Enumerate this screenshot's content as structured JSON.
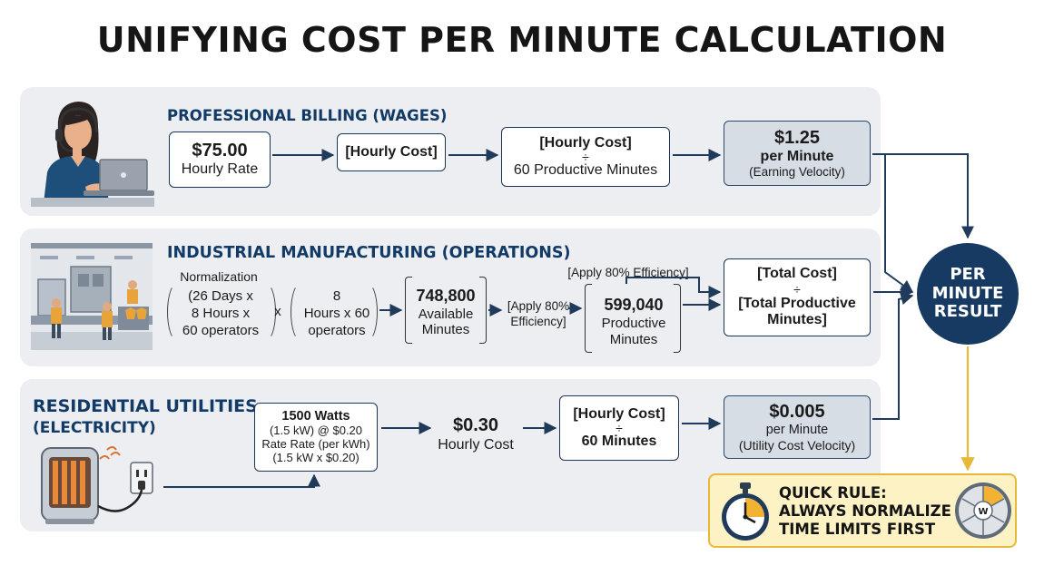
{
  "title": "UNIFYING COST PER MINUTE CALCULATION",
  "colors": {
    "navy": "#173a63",
    "panel": "#eceef1",
    "dark_box": "#d7dde5",
    "gold": "#e6b93a",
    "rule_bg": "#fdf2c4"
  },
  "professional": {
    "heading": "PROFESSIONAL BILLING (WAGES)",
    "icon": "headset-worker-laptop-icon",
    "rate_value": "$75.00",
    "rate_label": "Hourly Rate",
    "hourly_cost": "[Hourly Cost]",
    "calc_top": "[Hourly Cost]",
    "calc_op": "÷",
    "calc_bottom": "60 Productive Minutes",
    "result_value": "$1.25",
    "result_unit": "per Minute",
    "result_note": "(Earning Velocity)"
  },
  "industrial": {
    "heading": "INDUSTRIAL MANUFACTURING (OPERATIONS)",
    "icon": "factory-workers-icon",
    "normalization_label": "Normalization",
    "term1_l1": "(26 Days x",
    "term1_l2": "8 Hours x",
    "term1_l3": "60 operators",
    "times": "x",
    "term2_l1": "8",
    "term2_l2": "Hours x 60",
    "term2_l3": "operators",
    "available_value": "748,800",
    "available_l1": "Available",
    "available_l2": "Minutes",
    "apply_small_l1": "[Apply 80%",
    "apply_small_l2": "Efficiency]",
    "apply_top": "[Apply 80% Efficiency]",
    "productive_value": "599,040",
    "productive_l1": "Productive",
    "productive_l2": "Minutes",
    "total_top": "[Total Cost]",
    "total_op": "÷",
    "total_b1": "[Total Productive",
    "total_b2": "Minutes]"
  },
  "residential": {
    "heading_l1": "RESIDENTIAL UTILITIES",
    "heading_l2": "(ELECTRICITY)",
    "icon": "space-heater-outlet-icon",
    "watts": "1500 Watts",
    "watts_l2": "(1.5 kW) @ $0.20",
    "watts_l3": "Rate Rate (per kWh)",
    "watts_l4": "(1.5 kW x $0.20)",
    "hourly_value": "$0.30",
    "hourly_label": "Hourly Cost",
    "calc_top": "[Hourly Cost]",
    "calc_op": "÷",
    "calc_bottom": "60 Minutes",
    "result_value": "$0.005",
    "result_unit": "per Minute",
    "result_note": "(Utility Cost Velocity)"
  },
  "result": {
    "l1": "PER",
    "l2": "MINUTE",
    "l3": "RESULT"
  },
  "quick_rule": {
    "l1": "QUICK RULE:",
    "l2": "ALWAYS NORMALIZE",
    "l3": "TIME LIMITS FIRST",
    "stopwatch_icon": "stopwatch-icon",
    "dial_icon": "week-dial-icon",
    "dial_center": "W"
  }
}
